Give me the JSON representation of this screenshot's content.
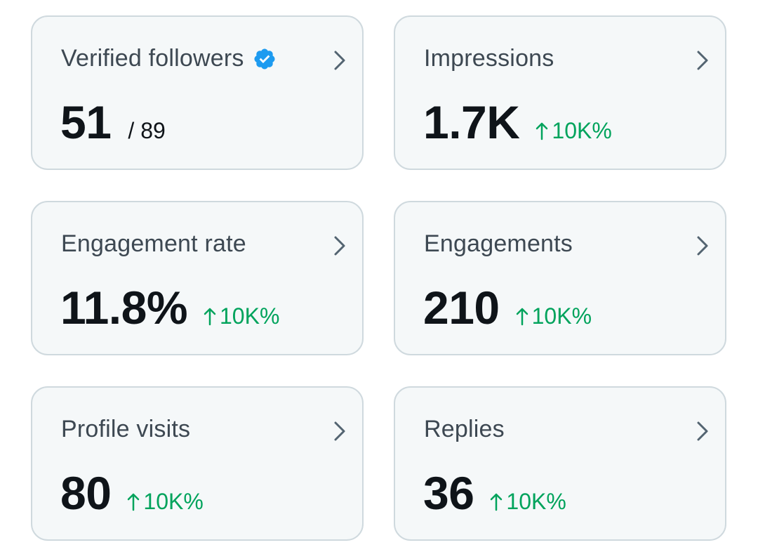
{
  "colors": {
    "card_bg": "#f5f8f9",
    "card_border": "#cfd9de",
    "label": "#3d4852",
    "value": "#0f1419",
    "trend_up": "#00a35c",
    "verified_badge": "#1d9bf0",
    "chevron": "#536471"
  },
  "icons": {
    "verified": "verified-badge-icon",
    "chevron": "chevron-right-icon",
    "trend": "arrow-up-icon"
  },
  "cards": [
    {
      "label": "Verified followers",
      "value": "51",
      "secondary": "/ 89"
    },
    {
      "label": "Impressions",
      "value": "1.7K",
      "trend": "10K%"
    },
    {
      "label": "Engagement rate",
      "value": "11.8%",
      "trend": "10K%"
    },
    {
      "label": "Engagements",
      "value": "210",
      "trend": "10K%"
    },
    {
      "label": "Profile visits",
      "value": "80",
      "trend": "10K%"
    },
    {
      "label": "Replies",
      "value": "36",
      "trend": "10K%"
    }
  ]
}
